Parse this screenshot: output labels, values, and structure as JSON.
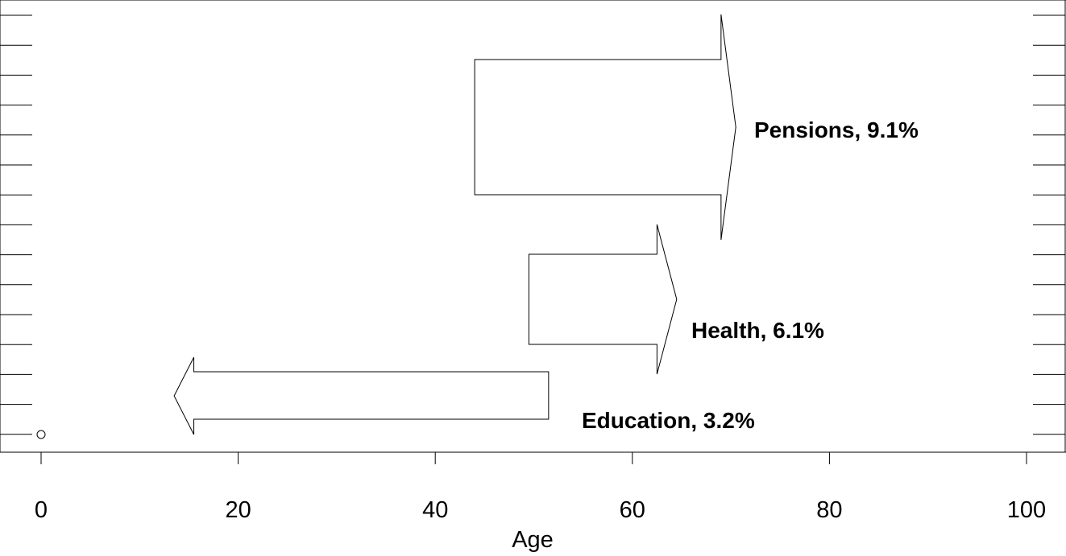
{
  "chart_data": {
    "type": "arrow-diagram",
    "xlabel": "Age",
    "xlim": [
      -4,
      104
    ],
    "xticks": [
      0,
      20,
      40,
      60,
      80,
      100
    ],
    "y_minor_tick_count": 15,
    "point": {
      "x": 0,
      "marker": "open-circle"
    },
    "arrows": [
      {
        "name": "Pensions",
        "label": "Pensions, 9.1%",
        "start_age": 44,
        "end_age": 69,
        "tip_age": 70.5,
        "direction": "right"
      },
      {
        "name": "Health",
        "label": "Health, 6.1%",
        "start_age": 49.5,
        "end_age": 62.5,
        "tip_age": 64.5,
        "direction": "right"
      },
      {
        "name": "Education",
        "label": "Education, 3.2%",
        "start_age": 51.5,
        "end_age": 15.5,
        "tip_age": 13.5,
        "direction": "left"
      }
    ]
  }
}
